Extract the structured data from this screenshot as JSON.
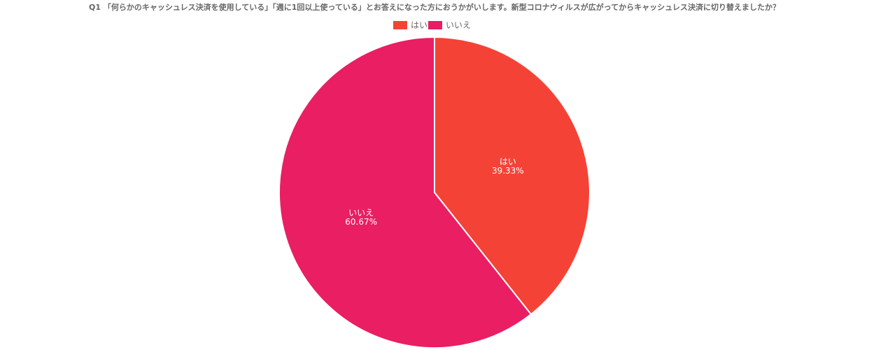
{
  "chart_data": {
    "type": "pie",
    "title": "Q1 「何らかのキャッシュレス決済を使用している」「週に1回以上使っている」とお答えになった方におうかがいします。新型コロナウィルスが広がってからキャッシュレス決済に切り替えましたか？",
    "categories": [
      "はい",
      "いいえ"
    ],
    "values": [
      39.33,
      60.67
    ],
    "value_labels": [
      "39.33%",
      "60.67%"
    ],
    "colors": [
      "#f44336",
      "#e91e63"
    ],
    "legend": "top"
  }
}
